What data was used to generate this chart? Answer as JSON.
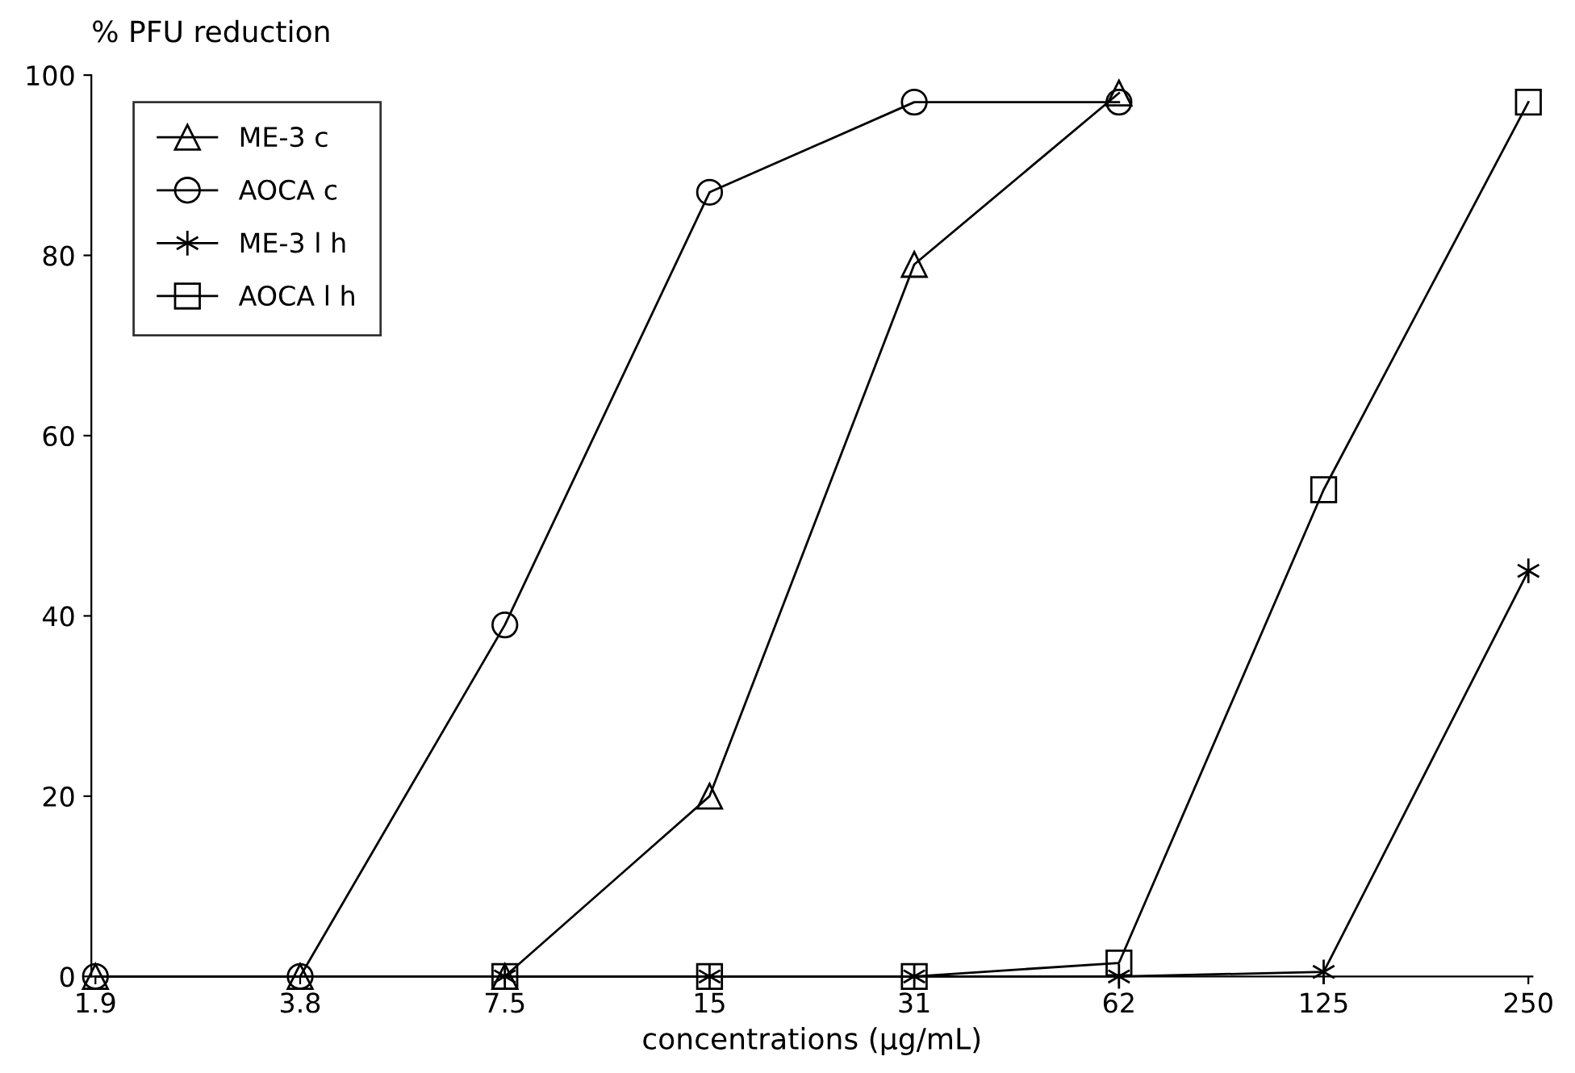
{
  "chart_data": {
    "type": "line",
    "ylabel": "% PFU reduction",
    "xlabel": "concentrations (µg/mL)",
    "categories": [
      "1.9",
      "3.8",
      "7.5",
      "15",
      "31",
      "62",
      "125",
      "250"
    ],
    "series": [
      {
        "name": "ME-3 c",
        "color": "#000000",
        "marker": "triangle",
        "values": [
          0,
          0,
          0,
          20,
          79,
          98,
          null,
          null
        ]
      },
      {
        "name": "AOCA c",
        "color": "#000000",
        "marker": "circle",
        "values": [
          0,
          0,
          39,
          87,
          97,
          97,
          null,
          null
        ]
      },
      {
        "name": "ME-3 l h",
        "color": "#000000",
        "marker": "cross",
        "values": [
          null,
          null,
          0,
          0,
          0,
          0,
          0.5,
          45
        ]
      },
      {
        "name": "AOCA l h",
        "color": "#000000",
        "marker": "square",
        "values": [
          null,
          null,
          0,
          0,
          0,
          1.5,
          54,
          97
        ]
      }
    ],
    "ylim": [
      0,
      100
    ],
    "yticks": [
      0,
      20,
      40,
      60,
      80,
      100
    ],
    "grid": false,
    "legend": "top left",
    "line_style": "solid"
  }
}
